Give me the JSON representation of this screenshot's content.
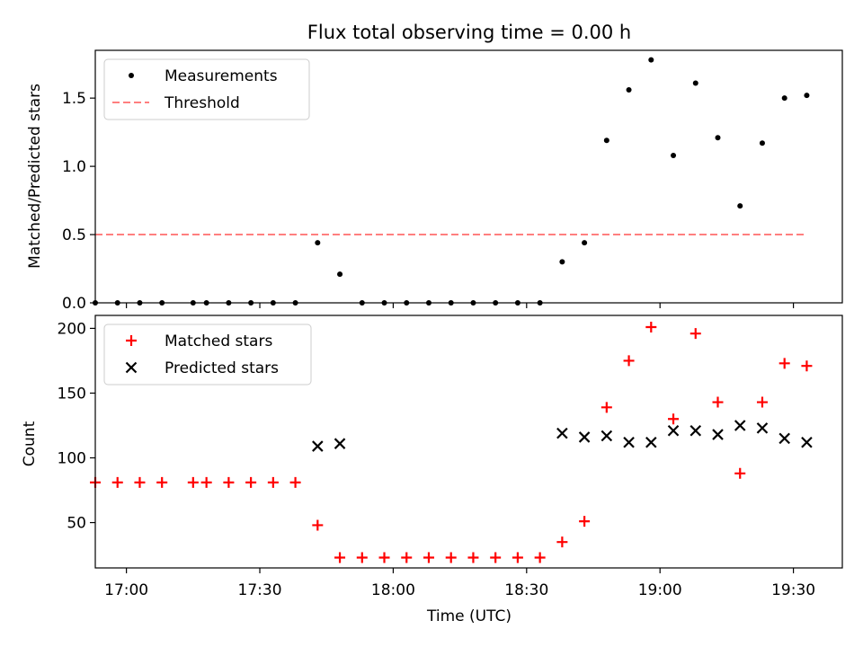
{
  "chart_data": [
    {
      "type": "scatter",
      "title": "Flux total observing time = 0.00 h",
      "ylabel": "Matched/Predicted stars",
      "xlabel": "",
      "xlim": [
        "16:53",
        "19:41"
      ],
      "ylim": [
        0,
        1.85
      ],
      "yticks": [
        0.0,
        0.5,
        1.0,
        1.5
      ],
      "ytick_labels": [
        "0.0",
        "0.5",
        "1.0",
        "1.5"
      ],
      "xticks": [
        "17:00",
        "17:30",
        "18:00",
        "18:30",
        "19:00",
        "19:30"
      ],
      "grid": false,
      "legend": {
        "position": "top-left",
        "entries": [
          "Measurements",
          "Threshold"
        ]
      },
      "series": [
        {
          "name": "Measurements",
          "kind": "scatter",
          "color": "#000000",
          "marker": "dot",
          "x": [
            "16:53",
            "16:58",
            "17:03",
            "17:08",
            "17:15",
            "17:18",
            "17:23",
            "17:28",
            "17:33",
            "17:38",
            "17:43",
            "17:48",
            "17:53",
            "17:58",
            "18:03",
            "18:08",
            "18:13",
            "18:18",
            "18:23",
            "18:28",
            "18:33",
            "18:38",
            "18:43",
            "18:48",
            "18:53",
            "18:58",
            "19:03",
            "19:08",
            "19:13",
            "19:18",
            "19:23",
            "19:28",
            "19:33"
          ],
          "y": [
            0.0,
            0.0,
            0.0,
            0.0,
            0.0,
            0.0,
            0.0,
            0.0,
            0.0,
            0.0,
            0.44,
            0.21,
            0.0,
            0.0,
            0.0,
            0.0,
            0.0,
            0.0,
            0.0,
            0.0,
            0.0,
            0.3,
            0.44,
            1.19,
            1.56,
            1.78,
            1.08,
            1.61,
            1.21,
            0.71,
            1.17,
            1.5,
            1.52
          ]
        },
        {
          "name": "Threshold",
          "kind": "line",
          "color": "#ff7f7f",
          "style": "dashed",
          "x": [
            "16:53",
            "19:33"
          ],
          "y": [
            0.5,
            0.5
          ]
        }
      ]
    },
    {
      "type": "scatter",
      "title": "",
      "ylabel": "Count",
      "xlabel": "Time (UTC)",
      "xlim": [
        "16:53",
        "19:41"
      ],
      "ylim": [
        15,
        210
      ],
      "yticks": [
        50,
        100,
        150,
        200
      ],
      "ytick_labels": [
        "50",
        "100",
        "150",
        "200"
      ],
      "xticks": [
        "17:00",
        "17:30",
        "18:00",
        "18:30",
        "19:00",
        "19:30"
      ],
      "xtick_labels": [
        "17:00",
        "17:30",
        "18:00",
        "18:30",
        "19:00",
        "19:30"
      ],
      "grid": false,
      "legend": {
        "position": "top-left",
        "entries": [
          "Matched stars",
          "Predicted stars"
        ]
      },
      "series": [
        {
          "name": "Matched stars",
          "kind": "scatter",
          "color": "#ff0000",
          "marker": "plus",
          "x": [
            "16:53",
            "16:58",
            "17:03",
            "17:08",
            "17:15",
            "17:18",
            "17:23",
            "17:28",
            "17:33",
            "17:38",
            "17:43",
            "17:48",
            "17:53",
            "17:58",
            "18:03",
            "18:08",
            "18:13",
            "18:18",
            "18:23",
            "18:28",
            "18:33",
            "18:38",
            "18:43",
            "18:48",
            "18:53",
            "18:58",
            "19:03",
            "19:08",
            "19:13",
            "19:18",
            "19:23",
            "19:28",
            "19:33"
          ],
          "y": [
            81,
            81,
            81,
            81,
            81,
            81,
            81,
            81,
            81,
            81,
            48,
            23,
            23,
            23,
            23,
            23,
            23,
            23,
            23,
            23,
            23,
            35,
            51,
            139,
            175,
            201,
            130,
            196,
            143,
            88,
            143,
            173,
            171
          ]
        },
        {
          "name": "Predicted stars",
          "kind": "scatter",
          "color": "#000000",
          "marker": "x",
          "x": [
            "17:43",
            "17:48",
            "18:38",
            "18:43",
            "18:48",
            "18:53",
            "18:58",
            "19:03",
            "19:08",
            "19:13",
            "19:18",
            "19:23",
            "19:28",
            "19:33"
          ],
          "y": [
            109,
            111,
            119,
            116,
            117,
            112,
            112,
            121,
            121,
            118,
            125,
            123,
            115,
            112
          ]
        }
      ]
    }
  ]
}
